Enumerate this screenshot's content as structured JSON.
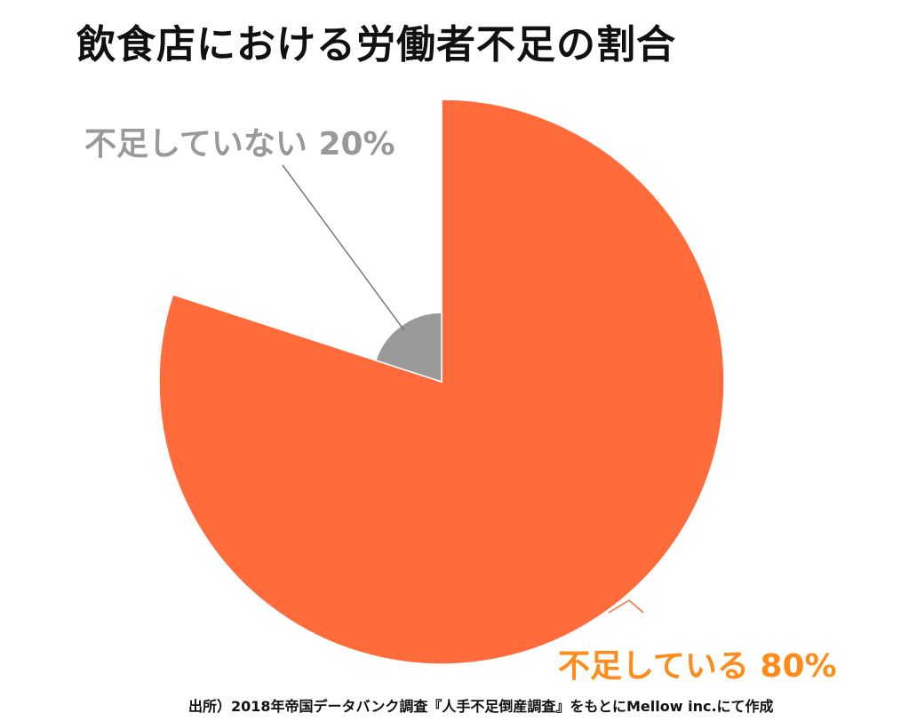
{
  "title": "飲食店における労働者不足の割合",
  "source": "出所）2018年帝国データバンク調査『人手不足倒産調査』をもとにMellow inc.にて作成",
  "colors": {
    "shortage": "#FF6B3B",
    "no_shortage": "#999999",
    "label_shortage": "#FF8C1A",
    "label_no_shortage": "#999999"
  },
  "chart_data": {
    "type": "pie",
    "title": "飲食店における労働者不足の割合",
    "slices": [
      {
        "label": "不足している",
        "value": 80,
        "display": "不足している 80%"
      },
      {
        "label": "不足していない",
        "value": 20,
        "display": "不足していない 20%"
      }
    ],
    "unit": "%"
  }
}
